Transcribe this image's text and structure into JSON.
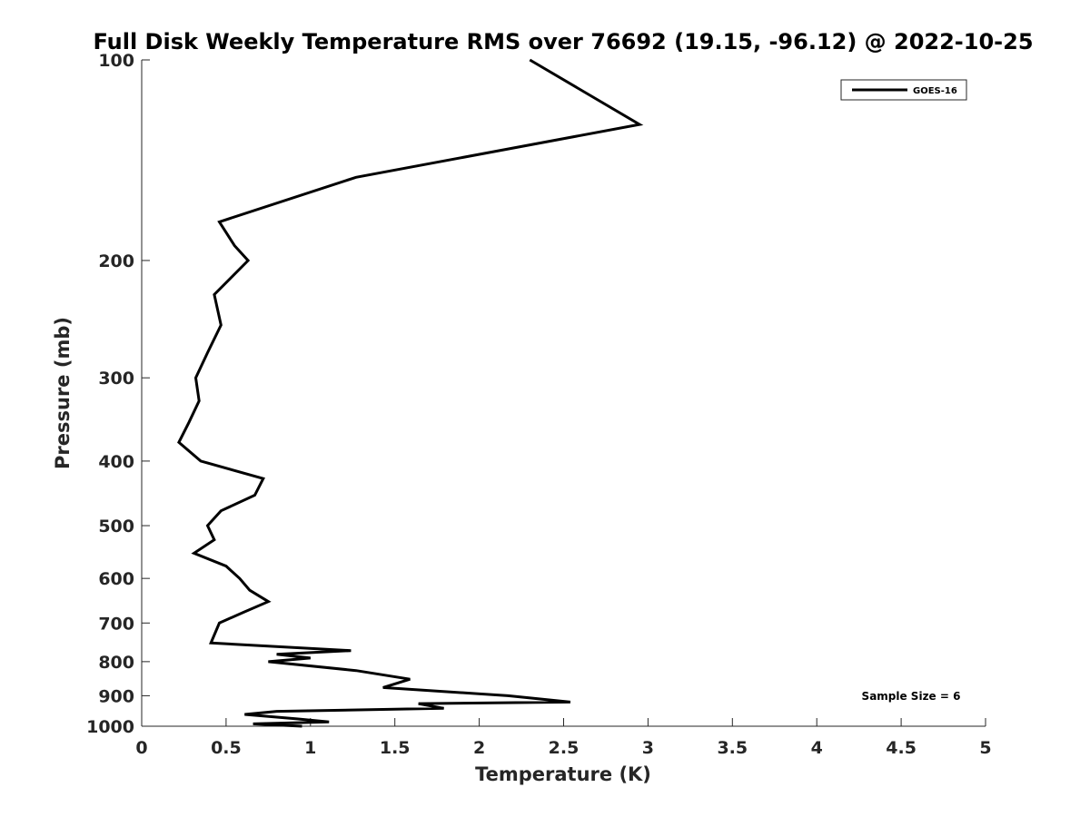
{
  "chart_data": {
    "type": "line",
    "title": "Full Disk Weekly Temperature RMS over 76692 (19.15, -96.12) @ 2022-10-25",
    "xlabel": "Temperature (K)",
    "ylabel": "Pressure (mb)",
    "xlim": [
      0,
      5
    ],
    "ylim": [
      100,
      1000
    ],
    "y_scale": "log",
    "y_reversed": true,
    "x_ticks": [
      0,
      0.5,
      1,
      1.5,
      2,
      2.5,
      3,
      3.5,
      4,
      4.5,
      5
    ],
    "x_tick_labels": [
      "0",
      "0.5",
      "1",
      "1.5",
      "2",
      "2.5",
      "3",
      "3.5",
      "4",
      "4.5",
      "5"
    ],
    "y_ticks": [
      100,
      200,
      300,
      400,
      500,
      600,
      700,
      800,
      900,
      1000
    ],
    "y_tick_labels": [
      "100",
      "200",
      "300",
      "400",
      "500",
      "600",
      "700",
      "800",
      "900",
      "1000"
    ],
    "grid": false,
    "legend_position": "top-right",
    "annotation": "Sample Size = 6",
    "series": [
      {
        "name": "GOES-16",
        "color": "#000000",
        "points": [
          [
            2.3,
            100
          ],
          [
            2.95,
            125
          ],
          [
            1.27,
            150
          ],
          [
            0.46,
            175
          ],
          [
            0.55,
            190
          ],
          [
            0.63,
            200
          ],
          [
            0.43,
            225
          ],
          [
            0.47,
            250
          ],
          [
            0.39,
            275
          ],
          [
            0.32,
            300
          ],
          [
            0.34,
            325
          ],
          [
            0.28,
            350
          ],
          [
            0.22,
            375
          ],
          [
            0.35,
            400
          ],
          [
            0.72,
            425
          ],
          [
            0.67,
            450
          ],
          [
            0.47,
            475
          ],
          [
            0.39,
            500
          ],
          [
            0.43,
            525
          ],
          [
            0.31,
            550
          ],
          [
            0.5,
            575
          ],
          [
            0.58,
            600
          ],
          [
            0.64,
            625
          ],
          [
            0.75,
            650
          ],
          [
            0.6,
            675
          ],
          [
            0.46,
            700
          ],
          [
            0.41,
            750
          ],
          [
            1.24,
            770
          ],
          [
            0.8,
            780
          ],
          [
            1.0,
            790
          ],
          [
            0.75,
            800
          ],
          [
            1.27,
            825
          ],
          [
            1.59,
            850
          ],
          [
            1.43,
            875
          ],
          [
            2.17,
            900
          ],
          [
            2.54,
            920
          ],
          [
            1.64,
            925
          ],
          [
            1.79,
            940
          ],
          [
            0.8,
            950
          ],
          [
            0.61,
            960
          ],
          [
            0.92,
            975
          ],
          [
            1.11,
            985
          ],
          [
            0.66,
            992
          ],
          [
            0.95,
            1000
          ]
        ]
      }
    ]
  }
}
